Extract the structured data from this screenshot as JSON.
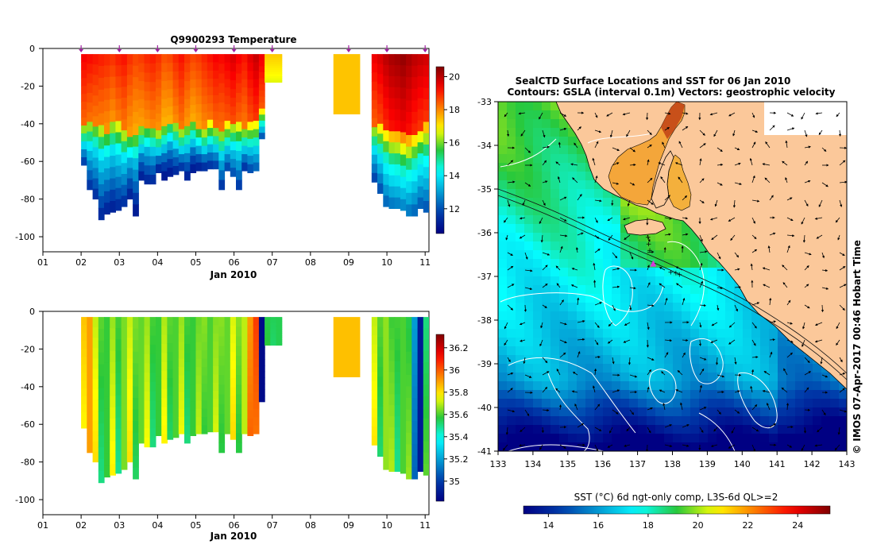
{
  "colors": {
    "land": "#fbc89a",
    "ocean_frame": "#ffffff",
    "station_marker": "#d63ad6",
    "contour": "#ffffff"
  },
  "chart_data": [
    {
      "id": "temperature_section",
      "type": "heatmap",
      "title": "Q9900293  Temperature",
      "xlabel": "Jan 2010",
      "x_ticks": [
        "01",
        "02",
        "03",
        "04",
        "05",
        "06",
        "07",
        "08",
        "09",
        "10",
        "11"
      ],
      "y_ticks": [
        "0",
        "-20",
        "-40",
        "-60",
        "-80",
        "-100"
      ],
      "xlim": [
        1,
        11.1
      ],
      "ylim": [
        -108,
        0
      ],
      "profile_times": [
        2.0,
        2.15,
        2.3,
        2.45,
        2.6,
        2.75,
        2.9,
        3.05,
        3.2,
        3.35,
        3.5,
        3.65,
        3.8,
        3.95,
        4.1,
        4.25,
        4.4,
        4.55,
        4.7,
        4.85,
        5.0,
        5.15,
        5.3,
        5.45,
        5.6,
        5.75,
        5.9,
        6.05,
        6.2,
        6.35,
        6.5,
        6.65,
        6.8,
        6.95,
        7.1,
        9.6,
        9.75,
        9.9,
        10.05,
        10.2,
        10.35,
        10.5,
        10.65,
        10.8,
        10.95
      ],
      "profile_depths": [
        -62,
        -75,
        -80,
        -91,
        -88,
        -87,
        -86,
        -84,
        -80,
        -89,
        -70,
        -72,
        -72,
        -66,
        -70,
        -68,
        -67,
        -65,
        -70,
        -66,
        -65,
        -65,
        -64,
        -64,
        -75,
        -65,
        -68,
        -75,
        -65,
        -66,
        -65,
        -48,
        -18,
        -18,
        -18,
        -71,
        -77,
        -84,
        -85,
        -85,
        -86,
        -89,
        -89,
        -85,
        -87
      ],
      "surface_values": [
        19.5,
        19.4,
        19.3,
        19.2,
        19.1,
        19.0,
        19.2,
        19.3,
        19.0,
        18.8,
        18.9,
        19.1,
        19.2,
        19.0,
        18.7,
        18.8,
        19.1,
        19.3,
        19.0,
        18.8,
        18.9,
        19.1,
        19.3,
        19.5,
        19.4,
        19.6,
        19.8,
        19.5,
        19.3,
        19.7,
        20.0,
        19.6,
        17.5,
        17.5,
        17.5,
        19.6,
        19.8,
        20.1,
        20.3,
        20.4,
        20.5,
        20.3,
        20.1,
        20.0,
        19.9
      ],
      "thermocline_depth": [
        -40,
        -38,
        -39,
        -42,
        -43,
        -40,
        -41,
        -44,
        -45,
        -46,
        -42,
        -40,
        -41,
        -45,
        -42,
        -38,
        -40,
        -43,
        -41,
        -39,
        -42,
        -44,
        -40,
        -41,
        -43,
        -40,
        -38,
        -40,
        -42,
        -40,
        -38,
        -33,
        -25,
        -25,
        -25,
        -40,
        -41,
        -43,
        -45,
        -45,
        -47,
        -48,
        -46,
        -43,
        -42
      ],
      "gap_profiles": [
        {
          "t": 8.6,
          "t_end": 9.3,
          "depth": -35,
          "value": 17.4
        }
      ],
      "surface_station_markers": [
        2.0,
        3.0,
        4.0,
        5.0,
        6.0,
        7.0,
        9.0,
        10.0,
        11.0
      ],
      "colorbar": {
        "vmin": 10.5,
        "vmax": 20.6,
        "ticks": [
          "20",
          "18",
          "16",
          "14",
          "12"
        ],
        "tick_values": [
          20,
          18,
          16,
          14,
          12
        ]
      }
    },
    {
      "id": "salinity_section",
      "type": "heatmap",
      "title": "",
      "xlabel": "Jan 2010",
      "x_ticks": [
        "01",
        "02",
        "03",
        "04",
        "05",
        "06",
        "07",
        "08",
        "09",
        "10",
        "11"
      ],
      "y_ticks": [
        "0",
        "-20",
        "-40",
        "-60",
        "-80",
        "-100"
      ],
      "xlim": [
        1,
        11.1
      ],
      "ylim": [
        -108,
        0
      ],
      "profile_times": [
        2.0,
        2.15,
        2.3,
        2.45,
        2.6,
        2.75,
        2.9,
        3.05,
        3.2,
        3.35,
        3.5,
        3.65,
        3.8,
        3.95,
        4.1,
        4.25,
        4.4,
        4.55,
        4.7,
        4.85,
        5.0,
        5.15,
        5.3,
        5.45,
        5.6,
        5.75,
        5.9,
        6.05,
        6.2,
        6.35,
        6.5,
        6.65,
        6.8,
        6.95,
        7.1,
        9.6,
        9.75,
        9.9,
        10.05,
        10.2,
        10.35,
        10.5,
        10.65,
        10.8,
        10.95
      ],
      "profile_depths": [
        -62,
        -75,
        -80,
        -91,
        -88,
        -87,
        -86,
        -84,
        -80,
        -89,
        -70,
        -72,
        -72,
        -66,
        -70,
        -68,
        -67,
        -65,
        -70,
        -66,
        -65,
        -65,
        -64,
        -64,
        -75,
        -65,
        -68,
        -75,
        -65,
        -66,
        -65,
        -48,
        -18,
        -18,
        -18,
        -71,
        -77,
        -84,
        -85,
        -85,
        -86,
        -89,
        -89,
        -85,
        -87
      ],
      "surface_values": [
        35.85,
        35.9,
        35.7,
        35.62,
        35.58,
        35.66,
        35.6,
        35.64,
        35.7,
        35.65,
        35.62,
        35.66,
        35.6,
        35.58,
        35.68,
        35.62,
        35.6,
        35.66,
        35.6,
        35.58,
        35.62,
        35.66,
        35.6,
        35.64,
        35.66,
        35.62,
        35.72,
        35.66,
        35.7,
        35.9,
        36.05,
        34.85,
        35.55,
        35.55,
        35.55,
        35.7,
        35.62,
        35.66,
        35.58,
        35.6,
        35.6,
        35.55,
        35.2,
        34.9,
        35.5
      ],
      "gap_profiles": [
        {
          "t": 8.6,
          "t_end": 9.3,
          "depth": -35,
          "value": 35.85
        }
      ],
      "colorbar": {
        "vmin": 34.82,
        "vmax": 36.32,
        "ticks": [
          "36.2",
          "36",
          "35.8",
          "35.6",
          "35.4",
          "35.2",
          "35"
        ],
        "tick_values": [
          36.2,
          36.0,
          35.8,
          35.6,
          35.4,
          35.2,
          35.0
        ]
      }
    },
    {
      "id": "sst_map",
      "type": "heatmap",
      "title_line1": "SealCTD Surface Locations and SST for 06 Jan 2010",
      "title_line2": "Contours: GSLA (interval 0.1m) Vectors: geostrophic velocity",
      "x_ticks": [
        "133",
        "134",
        "135",
        "136",
        "137",
        "138",
        "139",
        "140",
        "141",
        "142",
        "143"
      ],
      "y_ticks": [
        "-33",
        "-34",
        "-35",
        "-36",
        "-37",
        "-38",
        "-39",
        "-40",
        "-41"
      ],
      "xlim": [
        133,
        143
      ],
      "ylim": [
        -41,
        -33
      ],
      "stations": [
        {
          "lon": 137.3,
          "lat": -36.1
        },
        {
          "lon": 137.32,
          "lat": -36.25
        },
        {
          "lon": 137.35,
          "lat": -36.4
        },
        {
          "lon": 137.45,
          "lat": -36.7
        },
        {
          "lon": 137.95,
          "lat": -36.9
        },
        {
          "lon": 138.1,
          "lat": -36.92
        },
        {
          "lon": 138.2,
          "lat": -36.95
        }
      ],
      "latest_station": {
        "lon": 137.45,
        "lat": -36.72
      },
      "colorbar": {
        "label": "SST (°C) 6d ngt-only comp, L3S-6d QL>=2",
        "vmin": 13,
        "vmax": 25.3,
        "ticks": [
          "14",
          "16",
          "18",
          "20",
          "22",
          "24"
        ],
        "tick_values": [
          14,
          16,
          18,
          20,
          22,
          24
        ]
      }
    }
  ],
  "credit": "© IMOS 07-Apr-2017 00:46 Hobart Time"
}
